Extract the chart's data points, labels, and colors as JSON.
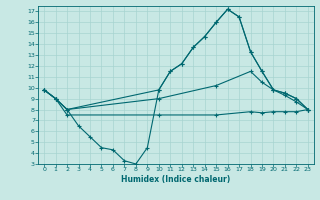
{
  "xlabel": "Humidex (Indice chaleur)",
  "xlim": [
    -0.5,
    23.5
  ],
  "ylim": [
    3,
    17.5
  ],
  "xticks": [
    0,
    1,
    2,
    3,
    4,
    5,
    6,
    7,
    8,
    9,
    10,
    11,
    12,
    13,
    14,
    15,
    16,
    17,
    18,
    19,
    20,
    21,
    22,
    23
  ],
  "yticks": [
    3,
    4,
    5,
    6,
    7,
    8,
    9,
    10,
    11,
    12,
    13,
    14,
    15,
    16,
    17
  ],
  "bg_color": "#c8e8e4",
  "grid_color": "#a8d4d0",
  "line_color": "#006870",
  "curve1_x": [
    0,
    1,
    2,
    10,
    11,
    12,
    13,
    14,
    15,
    16,
    17,
    18,
    19,
    20,
    21,
    22,
    23
  ],
  "curve1_y": [
    9.8,
    9.0,
    8.0,
    9.8,
    11.5,
    12.2,
    13.7,
    14.7,
    16.0,
    17.2,
    16.5,
    13.3,
    11.5,
    9.8,
    9.5,
    9.0,
    8.0
  ],
  "curve2_x": [
    0,
    1,
    2,
    3,
    4,
    5,
    6,
    7,
    8,
    9,
    10,
    11,
    12,
    13,
    14,
    15,
    16,
    17,
    18,
    19,
    20,
    21,
    22,
    23
  ],
  "curve2_y": [
    9.8,
    9.0,
    8.0,
    6.5,
    5.5,
    4.5,
    4.3,
    3.3,
    3.0,
    4.5,
    9.8,
    11.5,
    12.2,
    13.7,
    14.7,
    16.0,
    17.2,
    16.5,
    13.3,
    11.5,
    9.8,
    9.5,
    9.0,
    8.0
  ],
  "curve3_x": [
    0,
    1,
    2,
    10,
    15,
    18,
    19,
    20,
    21,
    22,
    23
  ],
  "curve3_y": [
    9.8,
    9.0,
    8.0,
    9.0,
    10.2,
    11.5,
    10.5,
    9.8,
    9.3,
    8.7,
    8.0
  ],
  "curve4_x": [
    0,
    1,
    2,
    10,
    15,
    18,
    19,
    20,
    21,
    22,
    23
  ],
  "curve4_y": [
    9.8,
    9.0,
    7.5,
    7.5,
    7.5,
    7.8,
    7.7,
    7.8,
    7.8,
    7.8,
    8.0
  ]
}
